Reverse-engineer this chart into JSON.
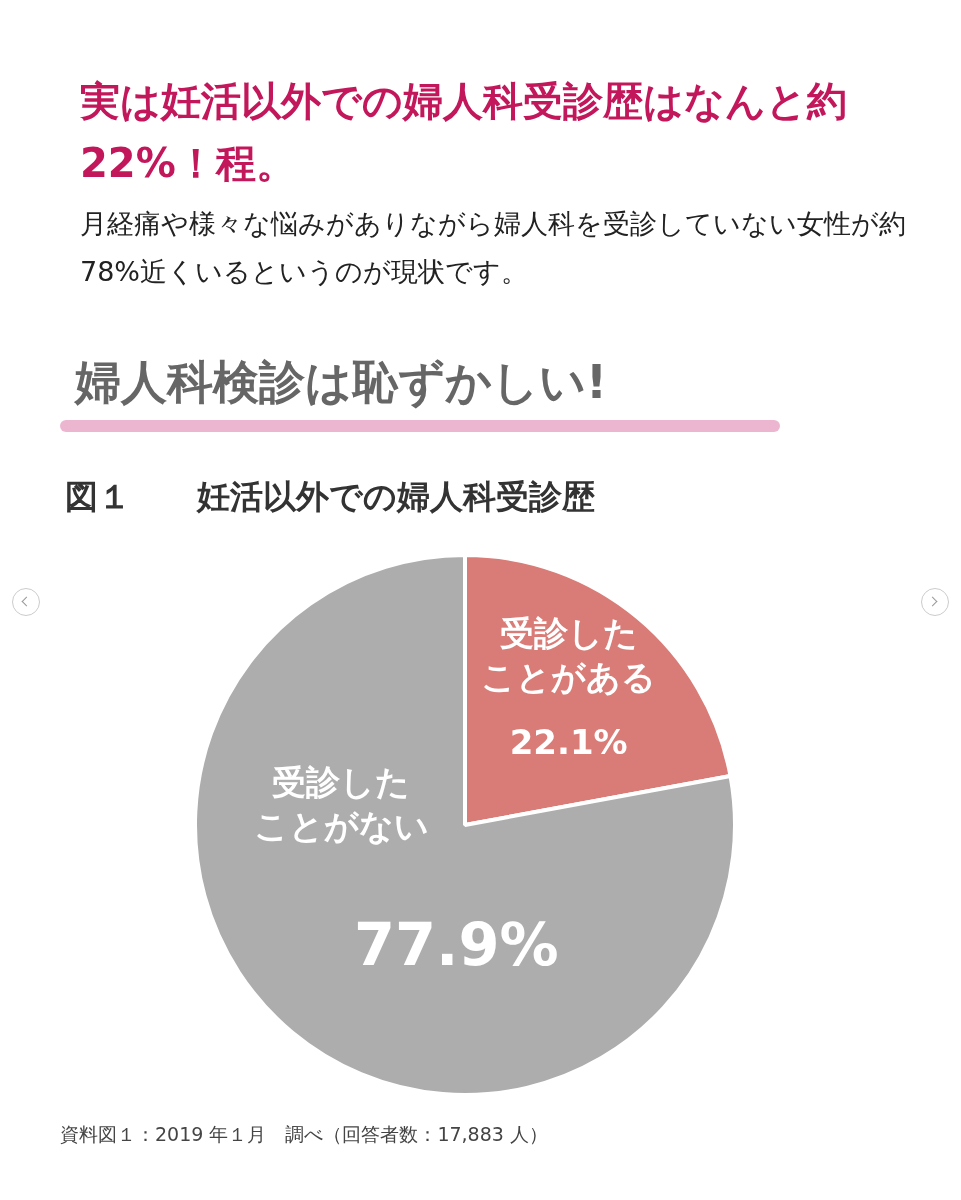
{
  "chart_data": {
    "type": "pie",
    "title": "実は妊活以外での婦人科受診歴はなんと約 22%！程。",
    "subtitle": "月経痛や様々な悩みがありながら婦人科を受診していない女性が約 78%近くいるというのが現状です。",
    "annotations": [
      "婦人科検診は恥ずかしい!",
      "図１　　妊活以外での婦人科受診歴",
      "資料図１：2019 年１月　調べ（回答者数：17,883 人）"
    ],
    "categories": [
      "受診したことがある",
      "受診したことがない"
    ],
    "values": [
      22.1,
      77.9
    ],
    "colors": [
      "#d97b76",
      "#aeadae"
    ],
    "value_labels": [
      "22.1%",
      "77.9%"
    ],
    "legend": false
  }
}
